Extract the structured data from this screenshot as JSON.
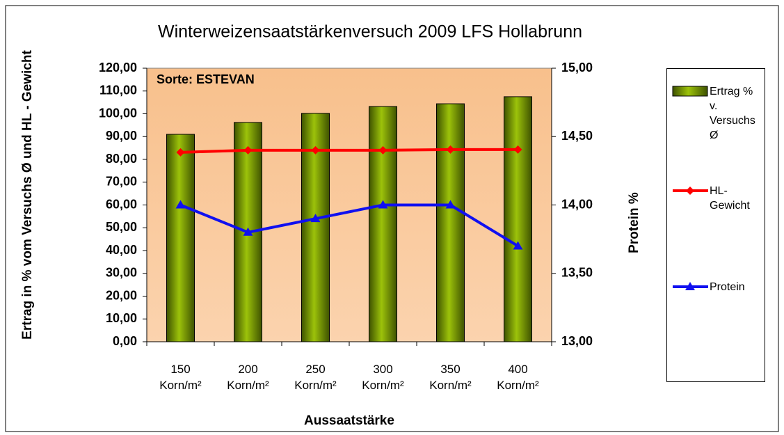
{
  "chart_data": {
    "type": "bar-line",
    "title": "Winterweizensaatstärkenversuch 2009 LFS Hollabrunn",
    "annotation": "Sorte: ESTEVAN",
    "x_label": "Aussaatstärke",
    "y_label": "Ertrag in % vom Versuchs Ø und HL - Gewicht",
    "y2_label": "Protein %",
    "categories": [
      "150 Korn/m²",
      "200 Korn/m²",
      "250 Korn/m²",
      "300 Korn/m²",
      "350 Korn/m²",
      "400 Korn/m²"
    ],
    "series": [
      {
        "name": "Ertrag % v. Versuchs Ø",
        "type": "bar",
        "color": "#7a9a01",
        "values": [
          91.0,
          96.2,
          100.2,
          103.2,
          104.4,
          107.5
        ]
      },
      {
        "name": "HL-Gewicht",
        "type": "line",
        "color": "#ff0000",
        "marker": "diamond",
        "values": [
          83.1,
          84.0,
          84.0,
          84.0,
          84.3,
          84.3
        ]
      },
      {
        "name": "Protein",
        "type": "line",
        "axis": "y2",
        "color": "#1010f0",
        "marker": "triangle",
        "values": [
          14.0,
          13.8,
          13.9,
          14.0,
          14.0,
          13.7
        ]
      }
    ],
    "ylim": [
      0,
      120
    ],
    "yticks": [
      {
        "value": 0,
        "label": "0,00"
      },
      {
        "value": 10,
        "label": "10,00"
      },
      {
        "value": 20,
        "label": "20,00"
      },
      {
        "value": 30,
        "label": "30,00"
      },
      {
        "value": 40,
        "label": "40,00"
      },
      {
        "value": 50,
        "label": "50,00"
      },
      {
        "value": 60,
        "label": "60,00"
      },
      {
        "value": 70,
        "label": "70,00"
      },
      {
        "value": 80,
        "label": "80,00"
      },
      {
        "value": 90,
        "label": "90,00"
      },
      {
        "value": 100,
        "label": "100,00"
      },
      {
        "value": 110,
        "label": "110,00"
      },
      {
        "value": 120,
        "label": "120,00"
      }
    ],
    "y2lim": [
      13,
      15
    ],
    "y2ticks": [
      {
        "value": 13,
        "label": "13,00"
      },
      {
        "value": 13.5,
        "label": "13,50"
      },
      {
        "value": 14,
        "label": "14,00"
      },
      {
        "value": 14.5,
        "label": "14,50"
      },
      {
        "value": 15,
        "label": "15,00"
      }
    ],
    "legend": "right"
  }
}
